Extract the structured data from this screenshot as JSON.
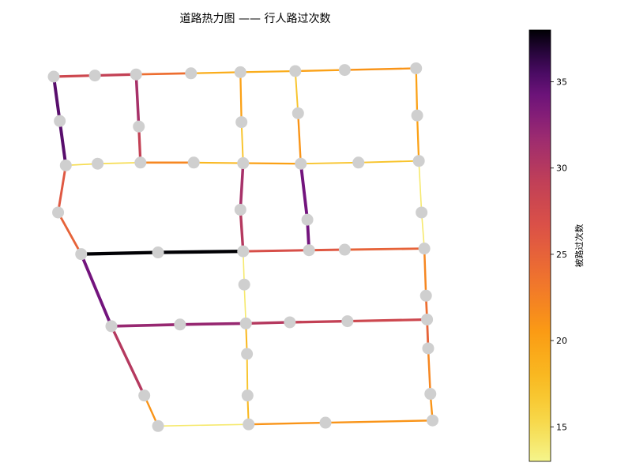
{
  "chart_data": {
    "type": "network",
    "title": "道路热力图 —— 行人路过次数",
    "colorbar": {
      "label": "被路过次数",
      "colormap": "inferno_r",
      "range": [
        13,
        38
      ],
      "ticks": [
        15,
        20,
        25,
        30,
        35
      ]
    },
    "nodes": {
      "A1": [
        0.0,
        0.0
      ],
      "A2": [
        0.75,
        0.02
      ],
      "A3": [
        1.5,
        0.04
      ],
      "A4": [
        2.5,
        0.06
      ],
      "A5": [
        3.4,
        0.08
      ],
      "A6": [
        4.4,
        0.1
      ],
      "A7": [
        5.3,
        0.12
      ],
      "A8": [
        6.6,
        0.15
      ],
      "B1": [
        0.22,
        -1.6
      ],
      "B2": [
        0.8,
        -1.57
      ],
      "B3": [
        1.58,
        -1.55
      ],
      "B4": [
        2.55,
        -1.55
      ],
      "B5": [
        3.45,
        -1.56
      ],
      "B6": [
        4.5,
        -1.57
      ],
      "B7": [
        5.55,
        -1.55
      ],
      "B8": [
        6.65,
        -1.52
      ],
      "C1": [
        0.5,
        -3.2
      ],
      "C2": [
        1.9,
        -3.17
      ],
      "C3": [
        3.45,
        -3.15
      ],
      "C4": [
        4.65,
        -3.13
      ],
      "C5": [
        5.3,
        -3.12
      ],
      "C6": [
        6.75,
        -3.1
      ],
      "D1": [
        1.05,
        -4.5
      ],
      "D2": [
        2.3,
        -4.47
      ],
      "D3": [
        3.5,
        -4.45
      ],
      "D4": [
        4.3,
        -4.43
      ],
      "D5": [
        5.35,
        -4.41
      ],
      "D6": [
        6.8,
        -4.38
      ],
      "E1": [
        1.9,
        -6.3
      ],
      "E2": [
        3.55,
        -6.27
      ],
      "E3": [
        4.95,
        -6.24
      ],
      "E4": [
        6.9,
        -6.2
      ],
      "m_A1B1": [
        0.11,
        -0.8
      ],
      "m_A3B3": [
        1.55,
        -0.9
      ],
      "m_A5B5": [
        3.42,
        -0.82
      ],
      "m_A6B6": [
        4.45,
        -0.66
      ],
      "m_A8B8": [
        6.62,
        -0.7
      ],
      "m_B1C1": [
        0.08,
        -2.45
      ],
      "m_B5C3": [
        3.4,
        -2.4
      ],
      "m_B6C4": [
        4.62,
        -2.58
      ],
      "m_B8C6": [
        6.7,
        -2.45
      ],
      "m_C3D3": [
        3.47,
        -3.75
      ],
      "m_C6D6": [
        6.78,
        -3.95
      ],
      "m_D1E1": [
        1.65,
        -5.75
      ],
      "m_D3E2": [
        3.52,
        -5.0
      ],
      "m_D3E2b": [
        3.53,
        -5.75
      ],
      "m_D6E4": [
        6.82,
        -4.9
      ],
      "m_D6E4b": [
        6.86,
        -5.72
      ]
    },
    "edges": [
      {
        "from": "A1",
        "to": "A2",
        "value": 28
      },
      {
        "from": "A2",
        "to": "A3",
        "value": 29
      },
      {
        "from": "A3",
        "to": "A4",
        "value": 24
      },
      {
        "from": "A4",
        "to": "A5",
        "value": 19
      },
      {
        "from": "A5",
        "to": "A6",
        "value": 19
      },
      {
        "from": "A6",
        "to": "A7",
        "value": 20
      },
      {
        "from": "A7",
        "to": "A8",
        "value": 21
      },
      {
        "from": "A1",
        "to": "m_A1B1",
        "value": 35
      },
      {
        "from": "m_A1B1",
        "to": "B1",
        "value": 35
      },
      {
        "from": "A3",
        "to": "m_A3B3",
        "value": 31
      },
      {
        "from": "m_A3B3",
        "to": "B3",
        "value": 29
      },
      {
        "from": "A5",
        "to": "m_A5B5",
        "value": 20
      },
      {
        "from": "m_A5B5",
        "to": "B5",
        "value": 17
      },
      {
        "from": "A6",
        "to": "m_A6B6",
        "value": 17
      },
      {
        "from": "m_A6B6",
        "to": "B6",
        "value": 21
      },
      {
        "from": "A8",
        "to": "m_A8B8",
        "value": 20
      },
      {
        "from": "m_A8B8",
        "to": "B8",
        "value": 20
      },
      {
        "from": "B1",
        "to": "B2",
        "value": 15
      },
      {
        "from": "B2",
        "to": "B3",
        "value": 15
      },
      {
        "from": "B3",
        "to": "B4",
        "value": 22
      },
      {
        "from": "B4",
        "to": "B5",
        "value": 18
      },
      {
        "from": "B5",
        "to": "B6",
        "value": 20
      },
      {
        "from": "B6",
        "to": "B7",
        "value": 17
      },
      {
        "from": "B7",
        "to": "B8",
        "value": 17
      },
      {
        "from": "B1",
        "to": "m_B1C1",
        "value": 26
      },
      {
        "from": "m_B1C1",
        "to": "C1",
        "value": 25
      },
      {
        "from": "B5",
        "to": "m_B5C3",
        "value": 31
      },
      {
        "from": "m_B5C3",
        "to": "C3",
        "value": 30
      },
      {
        "from": "B6",
        "to": "m_B6C4",
        "value": 34
      },
      {
        "from": "m_B6C4",
        "to": "C4",
        "value": 34
      },
      {
        "from": "B8",
        "to": "m_B8C6",
        "value": 14
      },
      {
        "from": "m_B8C6",
        "to": "C6",
        "value": 14
      },
      {
        "from": "C1",
        "to": "C2",
        "value": 38
      },
      {
        "from": "C2",
        "to": "C3",
        "value": 38
      },
      {
        "from": "C3",
        "to": "C4",
        "value": 27
      },
      {
        "from": "C4",
        "to": "C5",
        "value": 26
      },
      {
        "from": "C5",
        "to": "C6",
        "value": 25
      },
      {
        "from": "C1",
        "to": "D1",
        "value": 34
      },
      {
        "from": "C3",
        "to": "m_C3D3",
        "value": 14
      },
      {
        "from": "m_C3D3",
        "to": "D3",
        "value": 14
      },
      {
        "from": "C6",
        "to": "m_C6D6",
        "value": 22
      },
      {
        "from": "m_C6D6",
        "to": "D6",
        "value": 24
      },
      {
        "from": "D1",
        "to": "D2",
        "value": 32
      },
      {
        "from": "D2",
        "to": "D3",
        "value": 32
      },
      {
        "from": "D3",
        "to": "D4",
        "value": 30
      },
      {
        "from": "D4",
        "to": "D5",
        "value": 29
      },
      {
        "from": "D5",
        "to": "D6",
        "value": 28
      },
      {
        "from": "D1",
        "to": "m_D1E1",
        "value": 30
      },
      {
        "from": "m_D1E1",
        "to": "E1",
        "value": 21
      },
      {
        "from": "D3",
        "to": "m_D3E2",
        "value": 18
      },
      {
        "from": "m_D3E2",
        "to": "m_D3E2b",
        "value": 17
      },
      {
        "from": "m_D3E2b",
        "to": "E2",
        "value": 18
      },
      {
        "from": "D6",
        "to": "m_D6E4",
        "value": 25
      },
      {
        "from": "m_D6E4",
        "to": "m_D6E4b",
        "value": 22
      },
      {
        "from": "m_D6E4b",
        "to": "E4",
        "value": 21
      },
      {
        "from": "E1",
        "to": "E2",
        "value": 14
      },
      {
        "from": "E2",
        "to": "E3",
        "value": 21
      },
      {
        "from": "E3",
        "to": "E4",
        "value": 21
      }
    ]
  }
}
